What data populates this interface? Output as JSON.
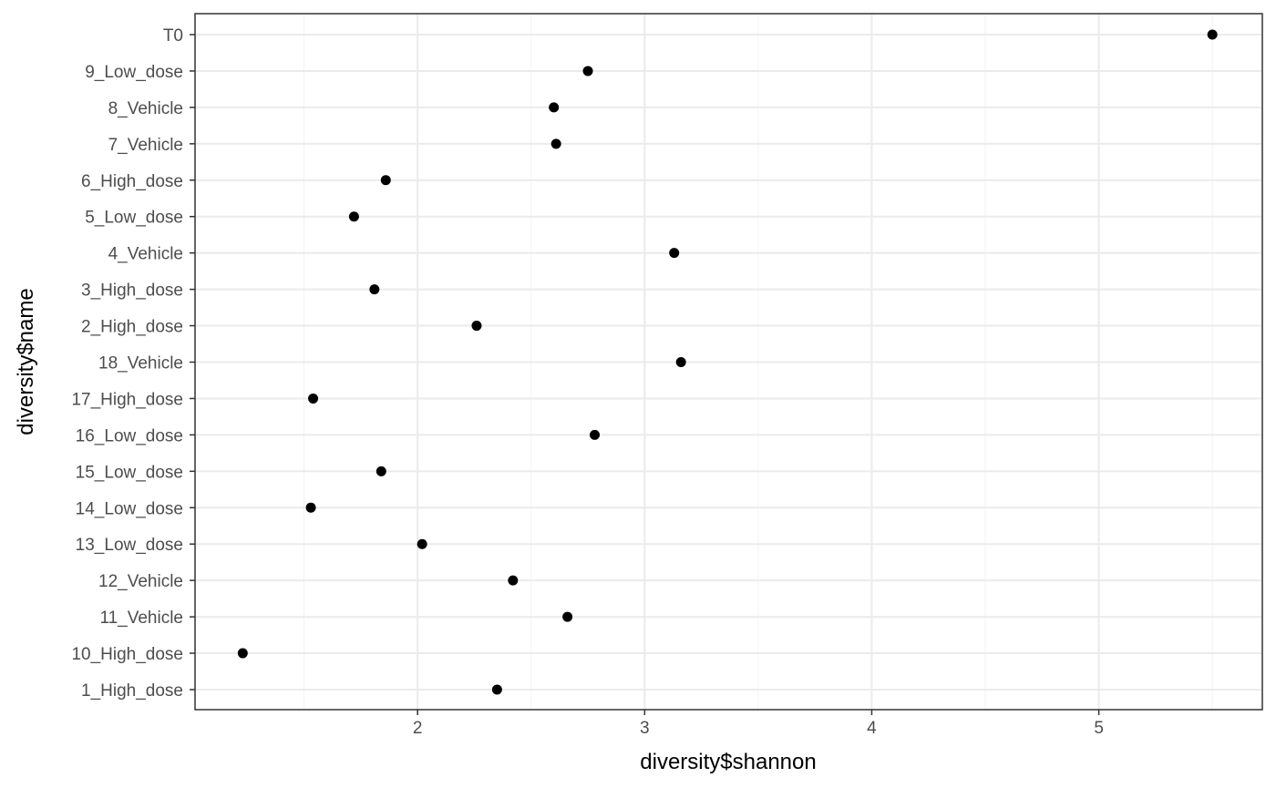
{
  "chart_data": {
    "type": "scatter",
    "title": "",
    "xlabel": "diversity$shannon",
    "ylabel": "diversity$name",
    "xlim": [
      1.02,
      5.72
    ],
    "x_ticks": [
      2,
      3,
      4,
      5
    ],
    "x_minor": [
      1.5,
      2.5,
      3.5,
      4.5,
      5.5
    ],
    "grid": true,
    "legend": "none",
    "point_color": "#000000",
    "categories": [
      "1_High_dose",
      "10_High_dose",
      "11_Vehicle",
      "12_Vehicle",
      "13_Low_dose",
      "14_Low_dose",
      "15_Low_dose",
      "16_Low_dose",
      "17_High_dose",
      "18_Vehicle",
      "2_High_dose",
      "3_High_dose",
      "4_Vehicle",
      "5_Low_dose",
      "6_High_dose",
      "7_Vehicle",
      "8_Vehicle",
      "9_Low_dose",
      "T0"
    ],
    "values": [
      2.35,
      1.23,
      2.66,
      2.42,
      2.02,
      1.53,
      1.84,
      2.78,
      1.54,
      3.16,
      2.26,
      1.81,
      3.13,
      1.72,
      1.86,
      2.61,
      2.6,
      2.75,
      5.5
    ]
  }
}
